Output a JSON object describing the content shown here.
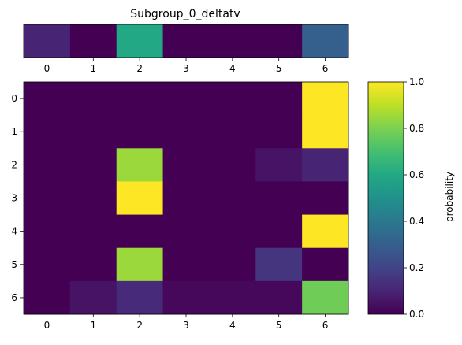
{
  "chart_data": [
    {
      "type": "heatmap",
      "title": "Subgroup_0_deltatv",
      "x_categories": [
        "0",
        "1",
        "2",
        "3",
        "4",
        "5",
        "6"
      ],
      "y_categories": [],
      "values": [
        [
          0.1,
          0.0,
          0.6,
          0.0,
          0.0,
          0.0,
          0.3
        ]
      ],
      "vmin": 0,
      "vmax": 1,
      "colormap": "viridis"
    },
    {
      "type": "heatmap",
      "title": "",
      "x_categories": [
        "0",
        "1",
        "2",
        "3",
        "4",
        "5",
        "6"
      ],
      "y_categories": [
        "0",
        "1",
        "2",
        "3",
        "4",
        "5",
        "6"
      ],
      "values": [
        [
          0.0,
          0.0,
          0.0,
          0.0,
          0.0,
          0.0,
          1.0
        ],
        [
          0.0,
          0.0,
          0.0,
          0.0,
          0.0,
          0.0,
          1.0
        ],
        [
          0.0,
          0.0,
          0.85,
          0.0,
          0.0,
          0.05,
          0.1
        ],
        [
          0.0,
          0.0,
          1.0,
          0.0,
          0.0,
          0.0,
          0.0
        ],
        [
          0.0,
          0.0,
          0.0,
          0.0,
          0.0,
          0.0,
          1.0
        ],
        [
          0.0,
          0.0,
          0.85,
          0.0,
          0.0,
          0.15,
          0.0
        ],
        [
          0.0,
          0.05,
          0.12,
          0.02,
          0.02,
          0.02,
          0.78
        ]
      ],
      "vmin": 0,
      "vmax": 1,
      "colormap": "viridis"
    }
  ],
  "colorbar": {
    "label": "probability",
    "ticks": [
      "0.0",
      "0.2",
      "0.4",
      "0.6",
      "0.8",
      "1.0"
    ],
    "range": [
      0,
      1
    ]
  }
}
